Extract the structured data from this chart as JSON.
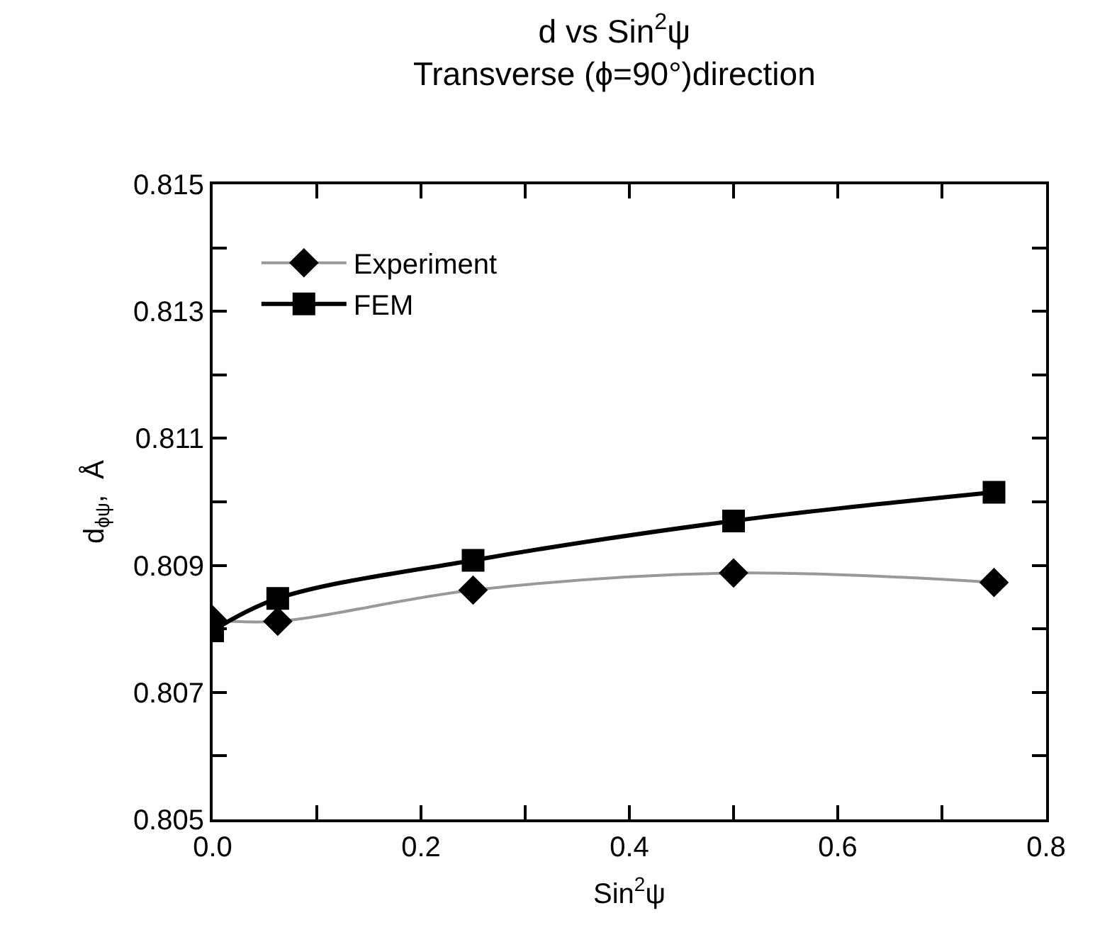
{
  "chart_data": {
    "type": "line",
    "title": "d vs Sin$^{2}$ψ",
    "subtitle": "Transverse (ϕ=90°)direction",
    "xlabel": "Sin$^{2}$ψ",
    "ylabel": "d$_{ϕψ}$,  Å",
    "x": [
      0,
      0.0625,
      0.25,
      0.5,
      0.75
    ],
    "series": [
      {
        "name": "Experiment",
        "color": "#999999",
        "marker": "diamond",
        "line_style": "solid",
        "values": [
          0.80814,
          0.80812,
          0.80861,
          0.80888,
          0.80873
        ]
      },
      {
        "name": "FEM",
        "color": "#000000",
        "marker": "square",
        "line_style": "solid",
        "values": [
          0.80797,
          0.80848,
          0.80908,
          0.8097,
          0.81015
        ]
      }
    ],
    "xlim": [
      0,
      0.8
    ],
    "xticks": [
      {
        "value": 0,
        "label": "0.0"
      },
      {
        "value": 0.1,
        "label": null
      },
      {
        "value": 0.2,
        "label": "0.2"
      },
      {
        "value": 0.3,
        "label": null
      },
      {
        "value": 0.4,
        "label": "0.4"
      },
      {
        "value": 0.5,
        "label": null
      },
      {
        "value": 0.6,
        "label": "0.6"
      },
      {
        "value": 0.7,
        "label": null
      },
      {
        "value": 0.8,
        "label": "0.8"
      }
    ],
    "ylim": [
      0.805,
      0.815
    ],
    "yticks": [
      {
        "value": 0.805,
        "label": "0.805"
      },
      {
        "value": 0.806,
        "label": null
      },
      {
        "value": 0.807,
        "label": "0.807"
      },
      {
        "value": 0.808,
        "label": null
      },
      {
        "value": 0.809,
        "label": "0.809"
      },
      {
        "value": 0.81,
        "label": null
      },
      {
        "value": 0.811,
        "label": "0.811"
      },
      {
        "value": 0.812,
        "label": null
      },
      {
        "value": 0.813,
        "label": "0.813"
      },
      {
        "value": 0.814,
        "label": null
      },
      {
        "value": 0.815,
        "label": "0.815"
      }
    ],
    "legend": "top left"
  }
}
